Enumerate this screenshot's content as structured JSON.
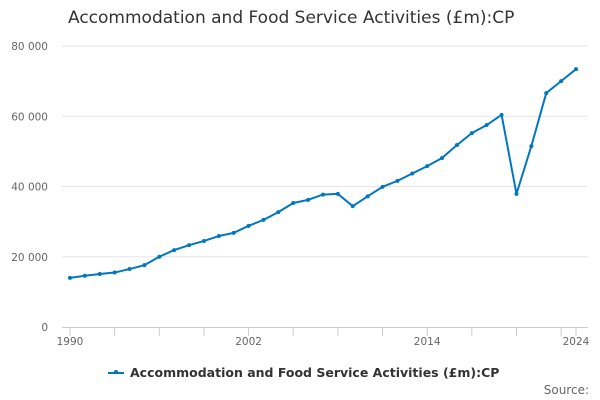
{
  "chart_data": {
    "type": "line",
    "title": "Accommodation and Food Service Activities (£m):CP",
    "xlabel": "",
    "ylabel": "",
    "x": [
      1990,
      1991,
      1992,
      1993,
      1994,
      1995,
      1996,
      1997,
      1998,
      1999,
      2000,
      2001,
      2002,
      2003,
      2004,
      2005,
      2006,
      2007,
      2008,
      2009,
      2010,
      2011,
      2012,
      2013,
      2014,
      2015,
      2016,
      2017,
      2018,
      2019,
      2020,
      2021,
      2022,
      2023,
      2024
    ],
    "series": [
      {
        "name": "Accommodation and Food Service Activities (£m):CP",
        "color": "#0077c0",
        "values": [
          14000,
          14600,
          15100,
          15500,
          16500,
          17600,
          20000,
          21900,
          23300,
          24500,
          25900,
          26800,
          28800,
          30500,
          32700,
          35300,
          36200,
          37700,
          37900,
          34400,
          37200,
          39900,
          41600,
          43700,
          45800,
          48100,
          51800,
          55200,
          57500,
          60400,
          37900,
          51500,
          66600,
          70000,
          73400
        ]
      }
    ],
    "xlim": [
      1990,
      2024
    ],
    "ylim": [
      0,
      80000
    ],
    "x_tick_labels": [
      "1990",
      "2002",
      "2014",
      "2024"
    ],
    "y_tick_labels": [
      "0",
      "20 000",
      "40 000",
      "60 000",
      "80 000"
    ],
    "grid": "horizontal",
    "legend_placement": "bottom"
  },
  "source_label": "Source:"
}
